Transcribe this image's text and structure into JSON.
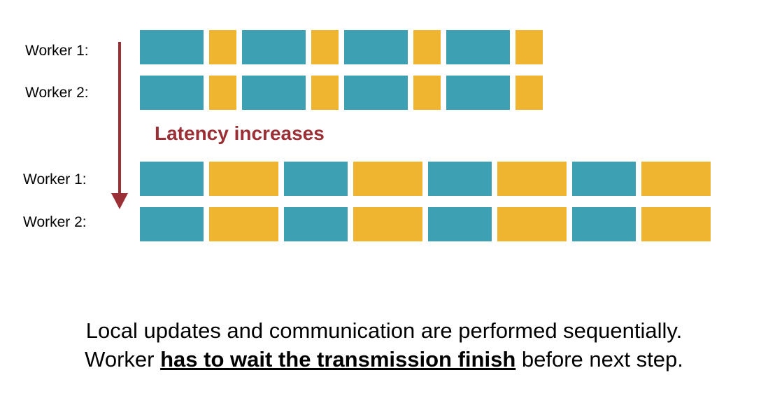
{
  "colors": {
    "compute": "#3ea1b3",
    "communication": "#f0b530",
    "latency": "#9a2f35",
    "text": "#000000"
  },
  "latency_label": "Latency increases",
  "low_latency": {
    "rows": [
      {
        "label": "Worker 1:"
      },
      {
        "label": "Worker 2:"
      }
    ],
    "pattern": [
      "compute",
      "communication",
      "compute",
      "communication",
      "compute",
      "communication",
      "compute",
      "communication"
    ]
  },
  "high_latency": {
    "rows": [
      {
        "label": "Worker 1:"
      },
      {
        "label": "Worker 2:"
      }
    ],
    "pattern": [
      "compute",
      "communication",
      "compute",
      "communication",
      "compute",
      "communication",
      "compute",
      "communication"
    ]
  },
  "caption": {
    "line1": "Local updates and communication are performed sequentially.",
    "line2_prefix": "Worker ",
    "line2_emphasis": "has to wait the transmission finish",
    "line2_suffix": " before next step."
  }
}
